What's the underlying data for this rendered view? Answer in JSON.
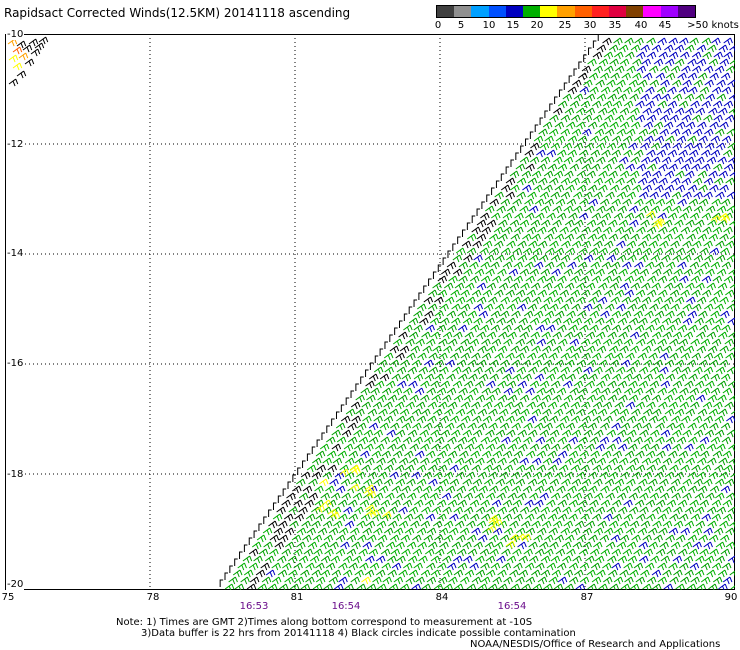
{
  "title": "Rapidsact Corrected Winds(12.5KM) 20141118 ascending",
  "colorbar": {
    "colors": [
      "#404040",
      "#909090",
      "#00a0ff",
      "#0050ff",
      "#0000c0",
      "#00b000",
      "#ffff00",
      "#ffa000",
      "#ff6000",
      "#ff2020",
      "#e00040",
      "#804000",
      "#ff00ff",
      "#a000ff",
      "#500080"
    ],
    "labels": [
      "0",
      "5",
      "10",
      "15",
      "20",
      "25",
      "30",
      "35",
      "40",
      "45",
      ">50 knots"
    ]
  },
  "axes": {
    "lat_labels": [
      "-10",
      "-12",
      "-14",
      "-16",
      "-18",
      "-20"
    ],
    "lon_labels": [
      "75",
      "78",
      "81",
      "84",
      "87",
      "90"
    ]
  },
  "times": [
    "16:53",
    "16:54",
    "16:54"
  ],
  "notes": {
    "line1": "Note: 1) Times are GMT 2)Times along bottom correspond to measurement at -10S",
    "line2": "3)Data buffer is 22 hrs from 20141118 4) Black circles indicate possible contamination",
    "line3": "NOAA/NESDIS/Office of Research and Applications"
  },
  "legend_colors": {
    "green": "#00b000",
    "blue": "#0000c0",
    "black": "#000000",
    "yellow": "#ffff00",
    "orange": "#ffa000"
  }
}
